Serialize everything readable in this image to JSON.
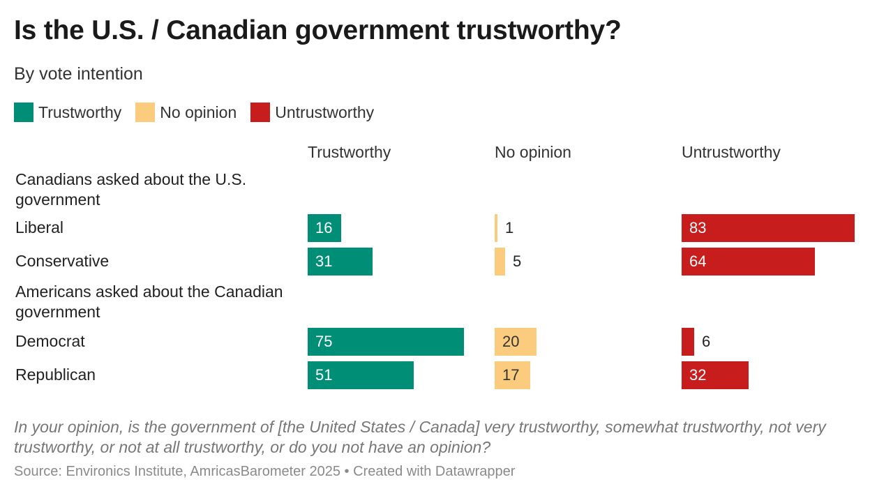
{
  "chart_data": {
    "type": "bar",
    "title": "Is the U.S. / Canadian government trustworthy?",
    "subtitle": "By vote intention",
    "legend": [
      {
        "name": "Trustworthy",
        "color": "#008F76"
      },
      {
        "name": "No opinion",
        "color": "#FBCB7E"
      },
      {
        "name": "Untrustworthy",
        "color": "#C71E1D"
      }
    ],
    "columns": [
      "Trustworthy",
      "No opinion",
      "Untrustworthy"
    ],
    "groups": [
      {
        "label": "Canadians asked about the U.S. government",
        "rows": [
          {
            "label": "Liberal",
            "values": [
              16,
              1,
              83
            ]
          },
          {
            "label": "Conservative",
            "values": [
              31,
              5,
              64
            ]
          }
        ]
      },
      {
        "label": "Americans asked about the Canadian government",
        "rows": [
          {
            "label": "Democrat",
            "values": [
              75,
              20,
              6
            ]
          },
          {
            "label": "Republican",
            "values": [
              51,
              17,
              32
            ]
          }
        ]
      }
    ],
    "xlim": [
      0,
      83
    ],
    "question": "In your opinion, is the government of [the United States / Canada] very trustworthy, somewhat trustworthy, not very trustworthy, or not at all trustworthy, or do you not have an opinion?",
    "source": "Source: Environics Institute, AmricasBarometer 2025 • Created with Datawrapper"
  }
}
